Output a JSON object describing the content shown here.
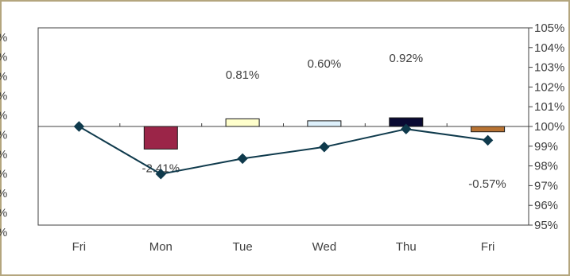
{
  "chart_data": {
    "type": "bar+line",
    "categories": [
      "Fri",
      "Mon",
      "Tue",
      "Wed",
      "Thu",
      "Fri"
    ],
    "series": [
      {
        "type": "bar",
        "values": [
          0,
          -2.41,
          0.81,
          0.6,
          0.92,
          -0.57
        ],
        "labels": [
          "",
          "-2.41%",
          "0.81%",
          "0.60%",
          "0.92%",
          "-0.57%"
        ],
        "colors": [
          "#ffffff",
          "#9b2548",
          "#ffffcc",
          "#ddf0fb",
          "#0a0a33",
          "#b87333"
        ]
      },
      {
        "type": "line",
        "axis": "right",
        "values": [
          100,
          97.59,
          98.37,
          98.96,
          99.87,
          99.3
        ],
        "color": "#0f3a4c"
      }
    ],
    "right_axis": {
      "ticks": [
        "105%",
        "104%",
        "103%",
        "102%",
        "101%",
        "100%",
        "99%",
        "98%",
        "97%",
        "96%",
        "95%"
      ],
      "ylim": [
        95,
        105
      ]
    },
    "left_axis": {
      "ticks": [
        "%",
        "%",
        "%",
        "%",
        "%",
        "%",
        "%",
        "%",
        "%",
        "%",
        "%"
      ]
    },
    "bar_ylim": [
      -5,
      5
    ],
    "grid": false,
    "legend": "none"
  }
}
